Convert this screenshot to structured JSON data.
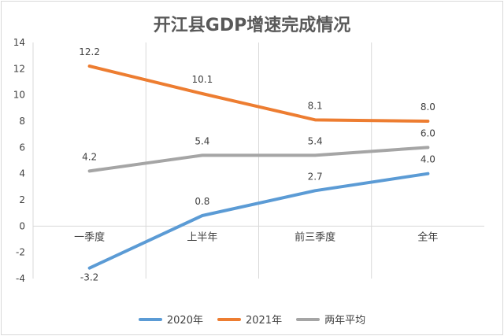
{
  "chart_data": {
    "type": "line",
    "title": "开江县GDP增速完成情况",
    "categories": [
      "一季度",
      "上半年",
      "前三季度",
      "全年"
    ],
    "ylim": [
      -4,
      14
    ],
    "yticks": [
      -4,
      -2,
      0,
      2,
      4,
      6,
      8,
      10,
      12,
      14
    ],
    "ytick_labels": [
      "-4",
      "-2",
      "0",
      "2",
      "4",
      "6",
      "8",
      "10",
      "12",
      "14"
    ],
    "grid": "vertical category separators",
    "legend_position": "bottom",
    "series": [
      {
        "name": "2020年",
        "color": "#5b9bd5",
        "values": [
          -3.2,
          0.8,
          2.7,
          4.0
        ],
        "labels": [
          "-3.2",
          "0.8",
          "2.7",
          "4.0"
        ]
      },
      {
        "name": "2021年",
        "color": "#ed7d31",
        "values": [
          12.2,
          10.1,
          8.1,
          8.0
        ],
        "labels": [
          "12.2",
          "10.1",
          "8.1",
          "8.0"
        ]
      },
      {
        "name": "两年平均",
        "color": "#a5a5a5",
        "values": [
          4.2,
          5.4,
          5.4,
          6.0
        ],
        "labels": [
          "4.2",
          "5.4",
          "5.4",
          "6.0"
        ]
      }
    ]
  }
}
